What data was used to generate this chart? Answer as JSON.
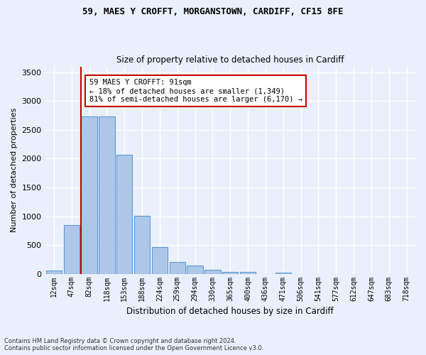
{
  "title1": "59, MAES Y CROFFT, MORGANSTOWN, CARDIFF, CF15 8FE",
  "title2": "Size of property relative to detached houses in Cardiff",
  "xlabel": "Distribution of detached houses by size in Cardiff",
  "ylabel": "Number of detached properties",
  "categories": [
    "12sqm",
    "47sqm",
    "82sqm",
    "118sqm",
    "153sqm",
    "188sqm",
    "224sqm",
    "259sqm",
    "294sqm",
    "330sqm",
    "365sqm",
    "400sqm",
    "436sqm",
    "471sqm",
    "506sqm",
    "541sqm",
    "577sqm",
    "612sqm",
    "647sqm",
    "683sqm",
    "718sqm"
  ],
  "values": [
    55,
    850,
    2730,
    2730,
    2070,
    1010,
    460,
    210,
    145,
    65,
    35,
    35,
    0,
    25,
    0,
    0,
    0,
    0,
    0,
    0,
    0
  ],
  "bar_color": "#aec6e8",
  "bar_edgecolor": "#5b9bd5",
  "bg_color": "#eaf0fb",
  "grid_color": "#ffffff",
  "vline_color": "#cc0000",
  "annotation_text": "59 MAES Y CROFFT: 91sqm\n← 18% of detached houses are smaller (1,349)\n81% of semi-detached houses are larger (6,170) →",
  "annotation_box_facecolor": "#ffffff",
  "annotation_box_edgecolor": "#cc0000",
  "footnote1": "Contains HM Land Registry data © Crown copyright and database right 2024.",
  "footnote2": "Contains public sector information licensed under the Open Government Licence v3.0.",
  "ylim": [
    0,
    3600
  ],
  "yticks": [
    0,
    500,
    1000,
    1500,
    2000,
    2500,
    3000,
    3500
  ]
}
